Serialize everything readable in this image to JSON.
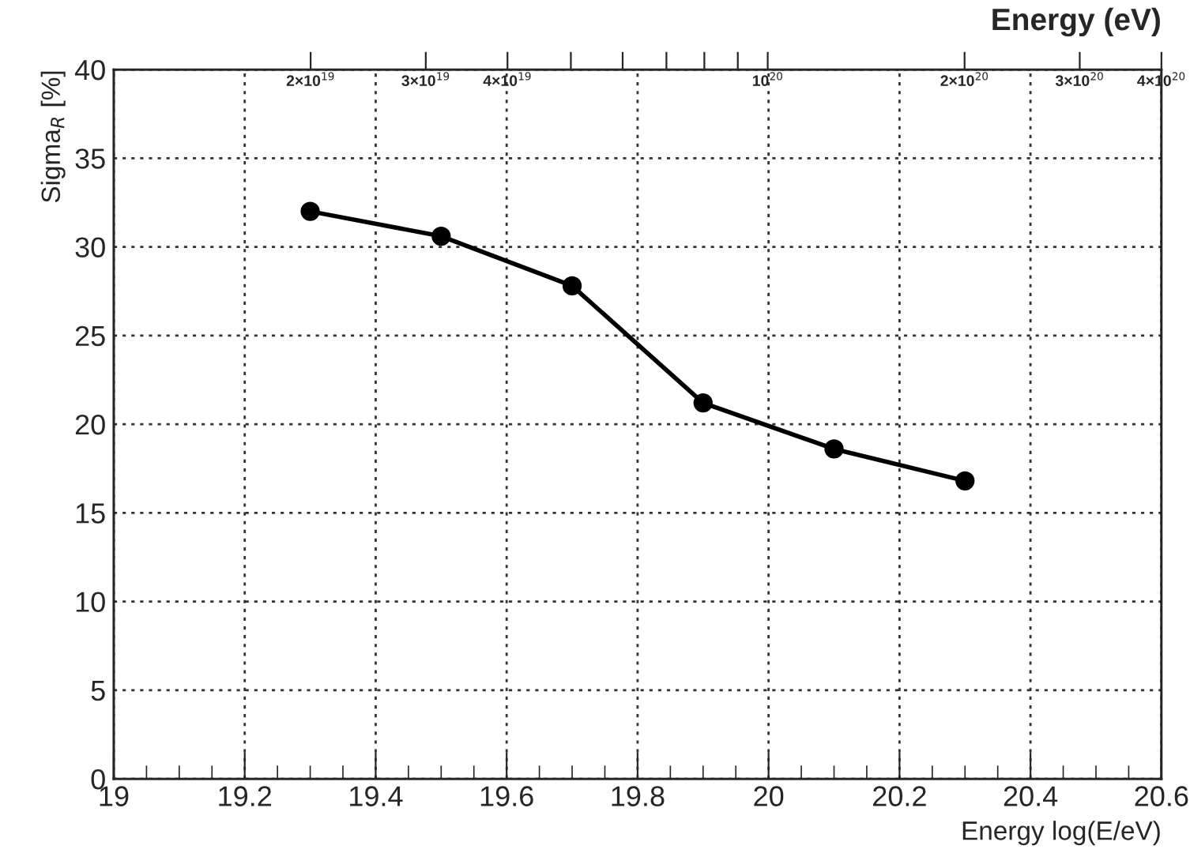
{
  "chart_data": {
    "type": "line",
    "xlabel": "Energy log(E/eV)",
    "ylabel": "Sigma$_{R}$ [%]",
    "x2label": "Energy (eV)",
    "x": [
      19.3,
      19.5,
      19.7,
      19.9,
      20.1,
      20.3
    ],
    "series": [
      {
        "color": "#000000",
        "values": [
          32.0,
          30.6,
          27.8,
          21.2,
          18.6,
          16.8
        ]
      }
    ],
    "marker": "circle",
    "line_style": "solid",
    "grid": true,
    "xlim": [
      19,
      20.6
    ],
    "xticks": [
      19,
      19.2,
      19.4,
      19.6,
      19.8,
      20,
      20.2,
      20.4,
      20.6
    ],
    "ylim": [
      0,
      40
    ],
    "yticks": [
      0,
      5,
      10,
      15,
      20,
      25,
      30,
      35,
      40
    ],
    "x2lim": [
      1e+19,
      4e+20
    ],
    "x2ticks": [
      {
        "value": 2e+19,
        "label": "2×10$^{19}$"
      },
      {
        "value": 3e+19,
        "label": "3×10$^{19}$"
      },
      {
        "value": 4e+19,
        "label": "4×10$^{19}$"
      },
      {
        "value": 5e+19,
        "label": null
      },
      {
        "value": 6e+19,
        "label": null
      },
      {
        "value": 7e+19,
        "label": null
      },
      {
        "value": 8e+19,
        "label": null
      },
      {
        "value": 9e+19,
        "label": null
      },
      {
        "value": 1e+20,
        "label": "10$^{20}$"
      },
      {
        "value": 2e+20,
        "label": "2×10$^{20}$"
      },
      {
        "value": 3e+20,
        "label": "3×10$^{20}$"
      },
      {
        "value": 4e+20,
        "label": "4×10$^{20}$"
      }
    ],
    "log": "x2"
  }
}
